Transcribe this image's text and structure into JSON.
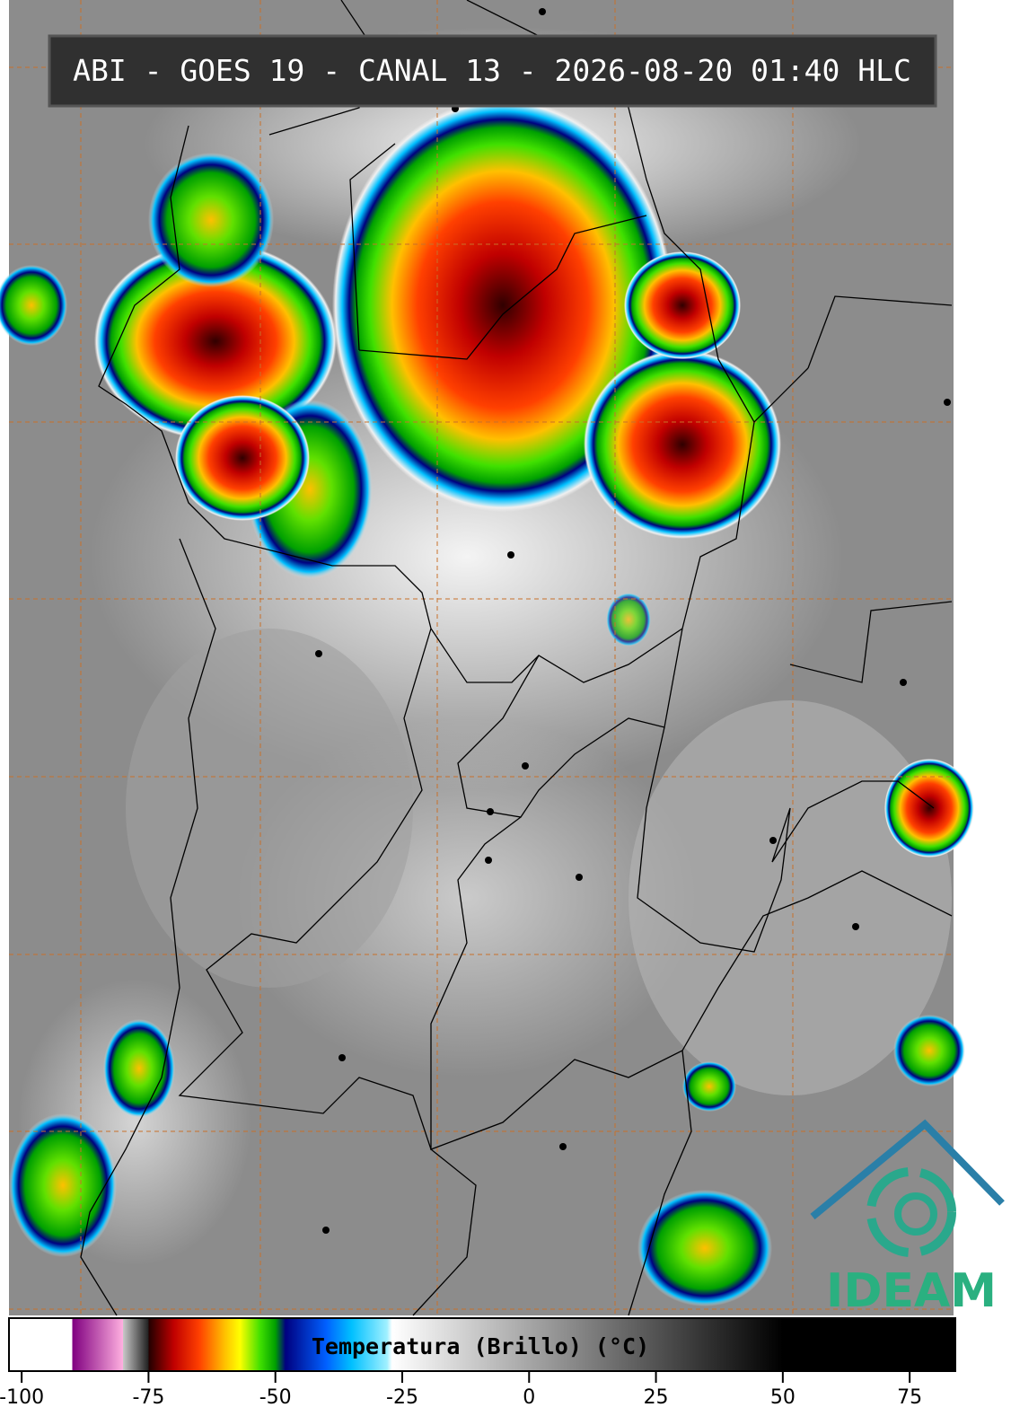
{
  "title": "ABI - GOES 19 - CANAL 13 - 2026-08-20 01:40 HLC",
  "logo": "IDEAM",
  "colorbar": {
    "label": "Temperatura (Brillo) (°C)",
    "lim": [
      -102.5,
      84
    ],
    "ticks": [
      -100,
      -75,
      -50,
      -25,
      0,
      25,
      50,
      75
    ],
    "stops": [
      [
        -90,
        "#ffffff"
      ],
      [
        -90,
        "#800080"
      ],
      [
        -80,
        "#ffb0e0"
      ],
      [
        -80,
        "#c8c8c8"
      ],
      [
        -75,
        "#202020"
      ],
      [
        -75,
        "#200000"
      ],
      [
        -70,
        "#c00000"
      ],
      [
        -65,
        "#ff4000"
      ],
      [
        -60,
        "#ffc000"
      ],
      [
        -57,
        "#ffff00"
      ],
      [
        -53,
        "#40e000"
      ],
      [
        -50,
        "#00a000"
      ],
      [
        -48,
        "#000080"
      ],
      [
        -40,
        "#0060ff"
      ],
      [
        -35,
        "#00c0ff"
      ],
      [
        -28,
        "#a0f0ff"
      ],
      [
        -27,
        "#ffffff"
      ],
      [
        50,
        "#000000"
      ]
    ]
  }
}
